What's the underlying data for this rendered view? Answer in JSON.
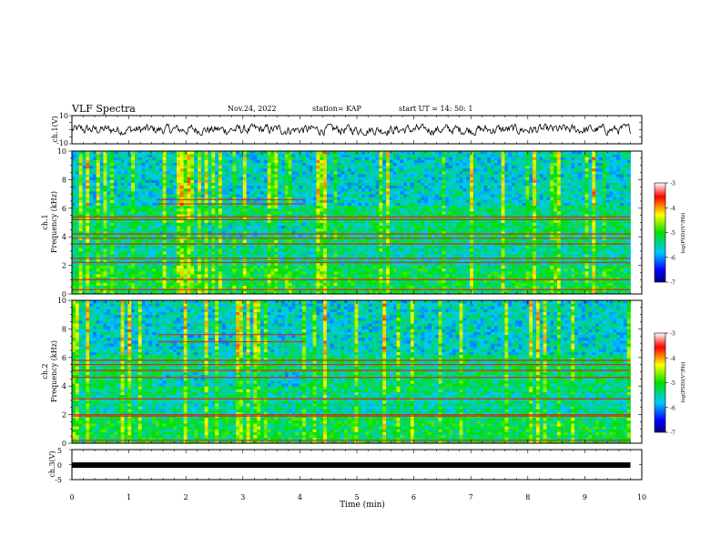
{
  "header": {
    "title": "VLF Spectra",
    "date": "Nov.24, 2022",
    "station": "station= KAP",
    "start": "start  UT =   14: 50: 1"
  },
  "chart_data": [
    {
      "type": "line",
      "panel": "ch1-waveform",
      "ylabel": "ch.1(V)",
      "ylim": [
        -10,
        10
      ],
      "yticklabels": [
        "10",
        "-10"
      ],
      "xlim": [
        0,
        10
      ],
      "trace_color": "#000000",
      "approx_amplitude_range": [
        -4,
        4
      ]
    },
    {
      "type": "heatmap",
      "panel": "ch1-spectrogram",
      "ylabel": "ch.1\nFrequency (kHz)",
      "ylim": [
        0,
        10
      ],
      "yticklabels": [
        "0",
        "2",
        "4",
        "6",
        "8",
        "10"
      ],
      "xlim": [
        0,
        10
      ],
      "data_end_min": 9.8,
      "colorbar": {
        "label": "log(PSD)(V²/Hz)",
        "range": [
          -7,
          -3
        ],
        "ticks": [
          "-3",
          "-4",
          "-5",
          "-6",
          "-7"
        ]
      },
      "horizontal_lines_khz": [
        0.3,
        1.0,
        2.2,
        2.5,
        3.5,
        3.9,
        4.2,
        5.2,
        5.4
      ],
      "segment_lines_khz": [
        {
          "x": [
            1.5,
            4.1
          ],
          "f": 6.6
        },
        {
          "x": [
            1.5,
            4.1
          ],
          "f": 6.3
        }
      ]
    },
    {
      "type": "heatmap",
      "panel": "ch2-spectrogram",
      "ylabel": "ch.2\nFrequency (kHz)",
      "ylim": [
        0,
        10
      ],
      "yticklabels": [
        "0",
        "2",
        "4",
        "6",
        "8",
        "10"
      ],
      "xlim": [
        0,
        10
      ],
      "data_end_min": 9.8,
      "colorbar": {
        "label": "log(PSD)(V²/Hz)",
        "range": [
          -7,
          -3
        ],
        "ticks": [
          "-3",
          "-4",
          "-5",
          "-6",
          "-7"
        ]
      },
      "horizontal_lines_khz": [
        0.2,
        1.9,
        2.0,
        3.1,
        4.6,
        5.1,
        5.5,
        5.8
      ],
      "segment_lines_khz": [
        {
          "x": [
            1.5,
            4.1
          ],
          "f": 7.6
        },
        {
          "x": [
            1.5,
            4.1
          ],
          "f": 7.1
        }
      ]
    },
    {
      "type": "line",
      "panel": "ch3-waveform",
      "ylabel": "ch.3(V)",
      "ylim": [
        -5,
        5
      ],
      "yticklabels": [
        "5",
        "0",
        "-5"
      ],
      "xlim": [
        0,
        10
      ],
      "xlabel": "Time  (min)",
      "xticklabels": [
        "0",
        "1",
        "2",
        "3",
        "4",
        "5",
        "6",
        "7",
        "8",
        "9",
        "10"
      ],
      "constant_value": 0,
      "trace_color": "#000000"
    }
  ]
}
